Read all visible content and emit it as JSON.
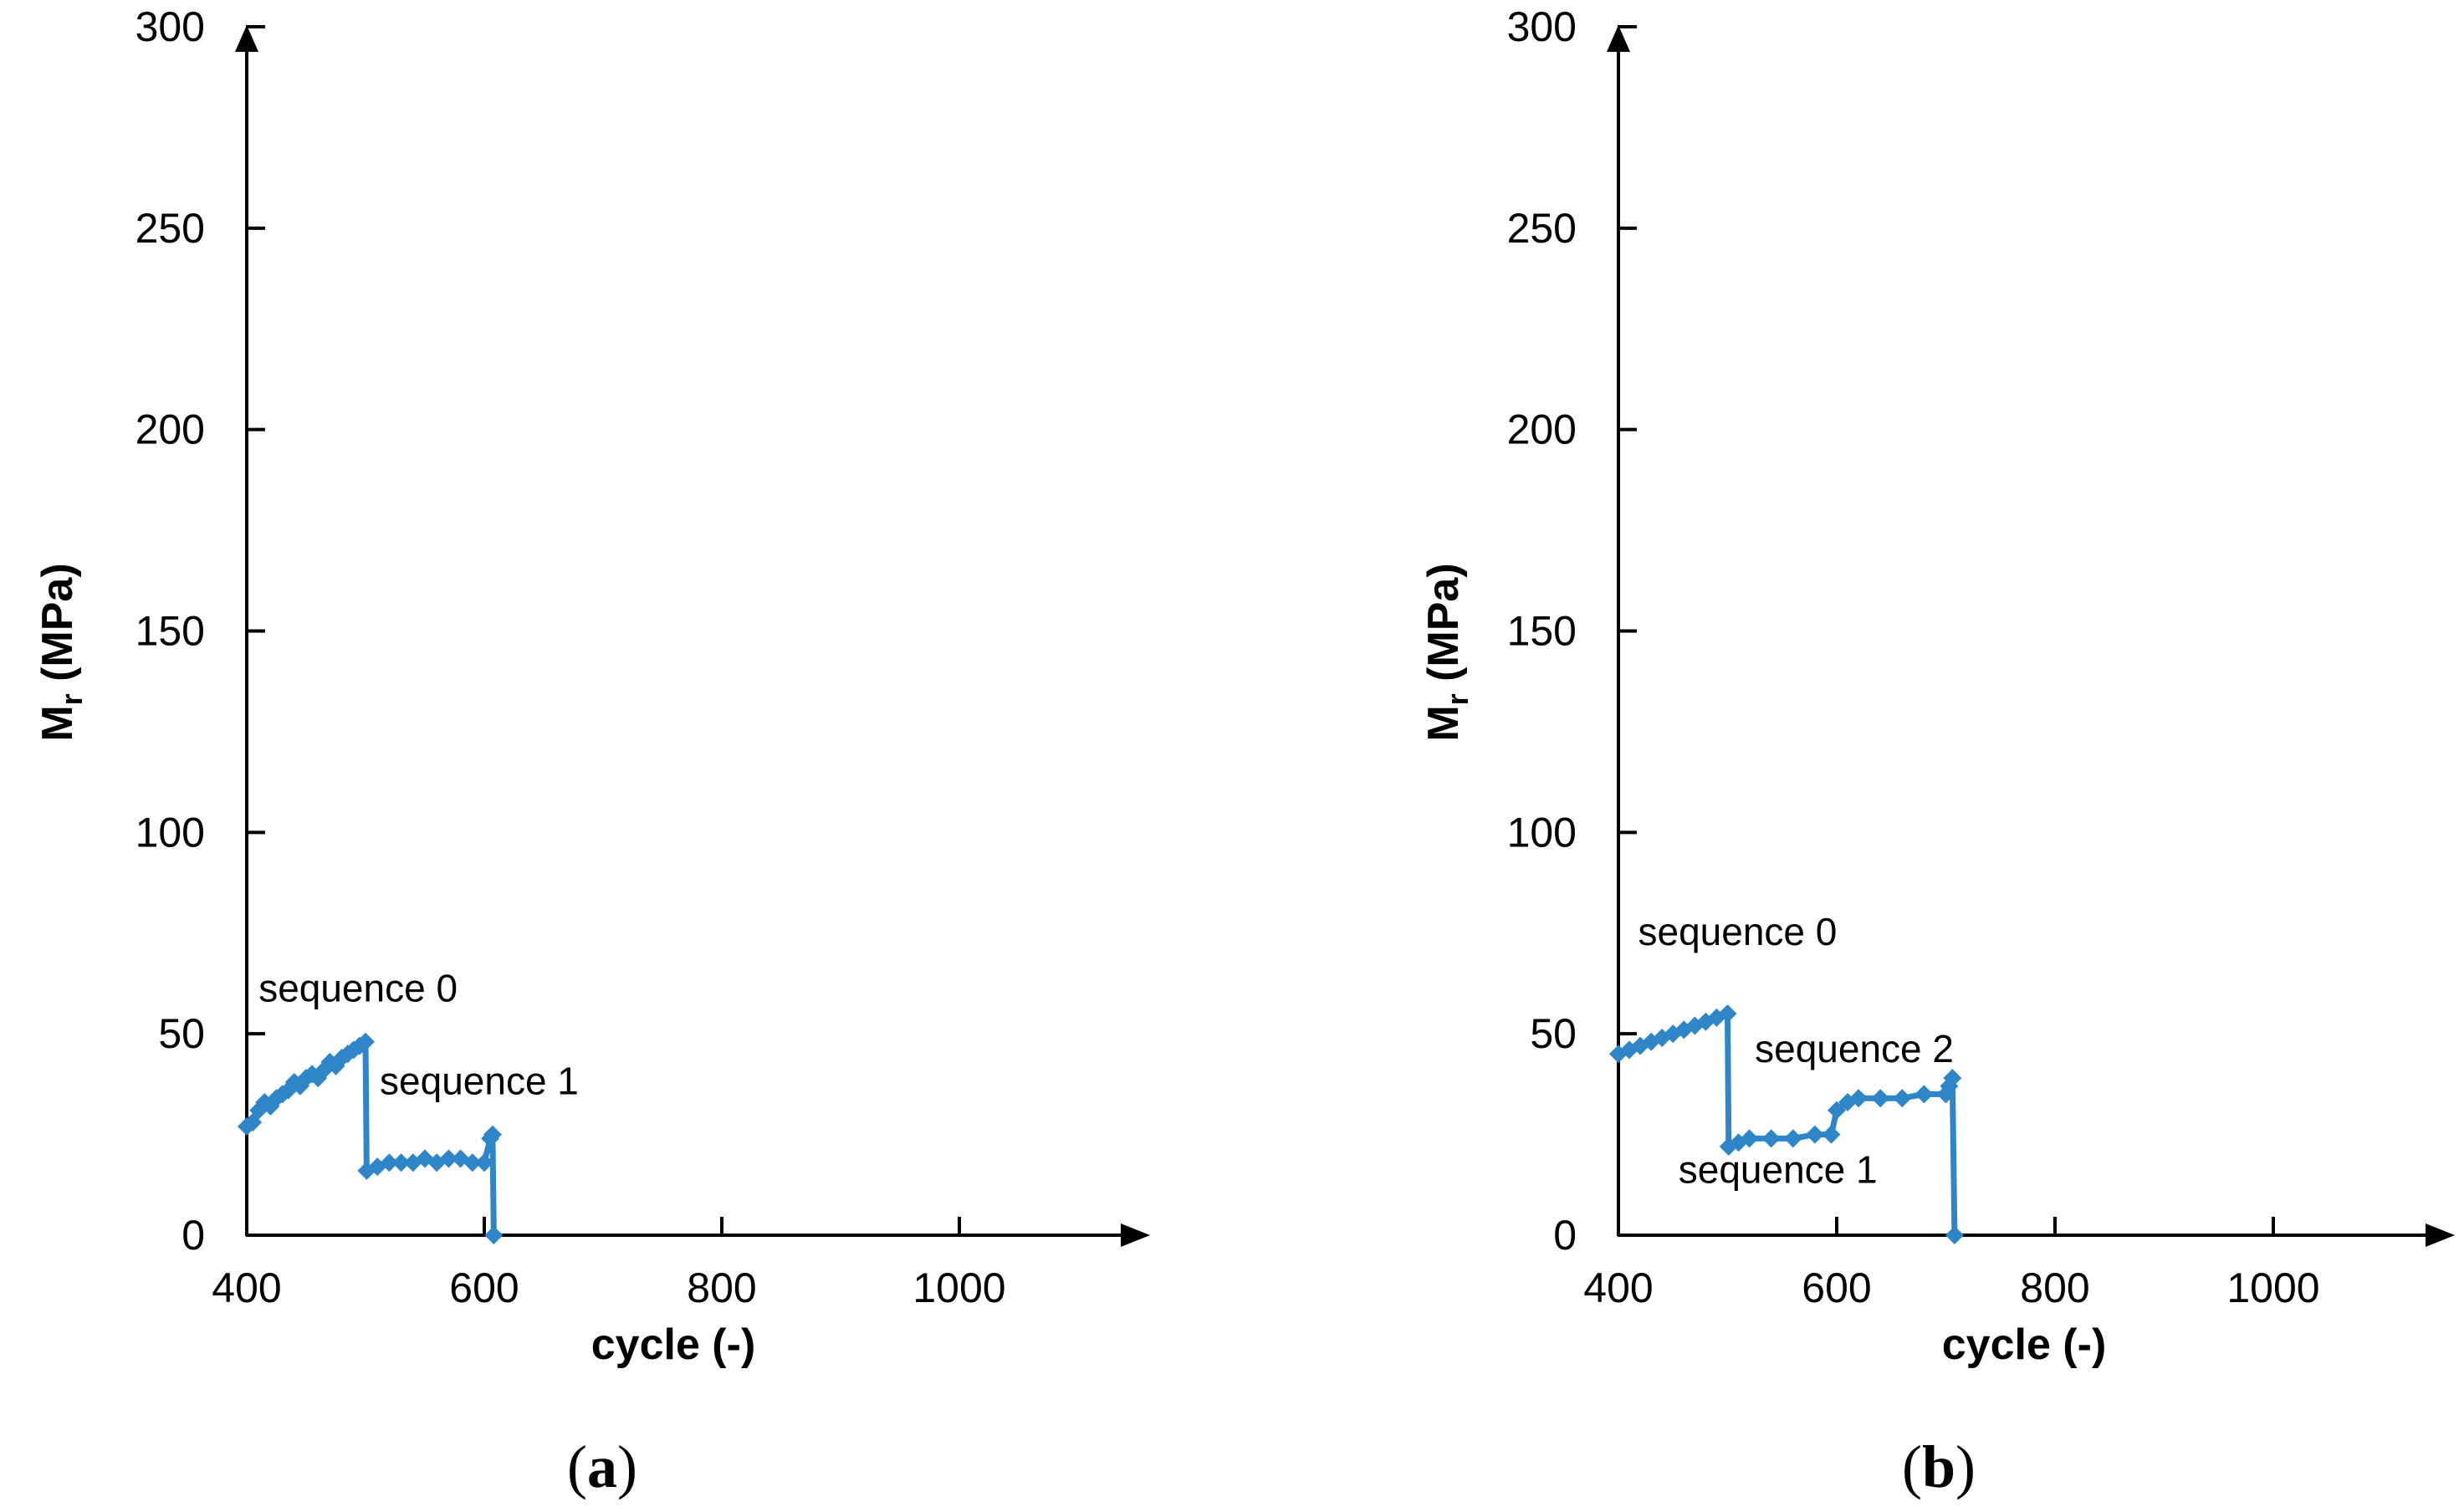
{
  "chart_data": [
    {
      "type": "line",
      "panel_label": {
        "open": "(",
        "letter": "a",
        "close": ")"
      },
      "xlabel": "cycle (-)",
      "ylabel_main": "M",
      "ylabel_sub": "r",
      "ylabel_unit": " (MPa)",
      "xlim": [
        400,
        1150
      ],
      "ylim": [
        0,
        300
      ],
      "xticks": [
        400,
        600,
        800,
        1000
      ],
      "yticks": [
        0,
        50,
        100,
        150,
        200,
        250,
        300
      ],
      "series_color": "#2e86c9",
      "series": [
        {
          "name": "Mr",
          "x": [
            400,
            405,
            410,
            415,
            420,
            425,
            430,
            435,
            440,
            445,
            450,
            455,
            460,
            465,
            470,
            475,
            480,
            485,
            490,
            495,
            500,
            501,
            510,
            520,
            530,
            540,
            550,
            560,
            570,
            580,
            590,
            600,
            605,
            607,
            608
          ],
          "y": [
            27,
            28,
            31,
            33,
            32,
            34,
            35,
            36,
            38,
            37,
            39,
            40,
            39,
            41,
            43,
            42,
            44,
            45,
            46,
            47,
            48,
            16,
            17,
            18,
            18,
            18,
            19,
            18,
            19,
            19,
            18,
            18,
            24,
            25,
            0
          ]
        }
      ],
      "annotations": [
        {
          "text": "sequence 0",
          "x": 410,
          "y": 58
        },
        {
          "text": "sequence 1",
          "x": 512,
          "y": 35
        }
      ]
    },
    {
      "type": "line",
      "panel_label": {
        "open": "(",
        "letter": "b",
        "close": ")"
      },
      "xlabel": "cycle (-)",
      "ylabel_main": "M",
      "ylabel_sub": "r",
      "ylabel_unit": " (MPa)",
      "xlim": [
        400,
        1150
      ],
      "ylim": [
        0,
        300
      ],
      "xticks": [
        400,
        600,
        800,
        1000
      ],
      "yticks": [
        0,
        50,
        100,
        150,
        200,
        250,
        300
      ],
      "series_color": "#2e86c9",
      "series": [
        {
          "name": "Mr",
          "x": [
            400,
            410,
            420,
            430,
            440,
            450,
            460,
            470,
            480,
            490,
            500,
            501,
            510,
            520,
            540,
            560,
            580,
            595,
            600,
            610,
            620,
            640,
            660,
            680,
            700,
            703,
            706,
            708
          ],
          "y": [
            45,
            46,
            47,
            48,
            49,
            50,
            51,
            52,
            53,
            54,
            55,
            22,
            23,
            24,
            24,
            24,
            25,
            25,
            31,
            33,
            34,
            34,
            34,
            35,
            35,
            37,
            39,
            0
          ]
        }
      ],
      "annotations": [
        {
          "text": "sequence 0",
          "x": 418,
          "y": 72
        },
        {
          "text": "sequence 2",
          "x": 525,
          "y": 43
        },
        {
          "text": "sequence 1",
          "x": 455,
          "y": 13
        }
      ]
    }
  ]
}
